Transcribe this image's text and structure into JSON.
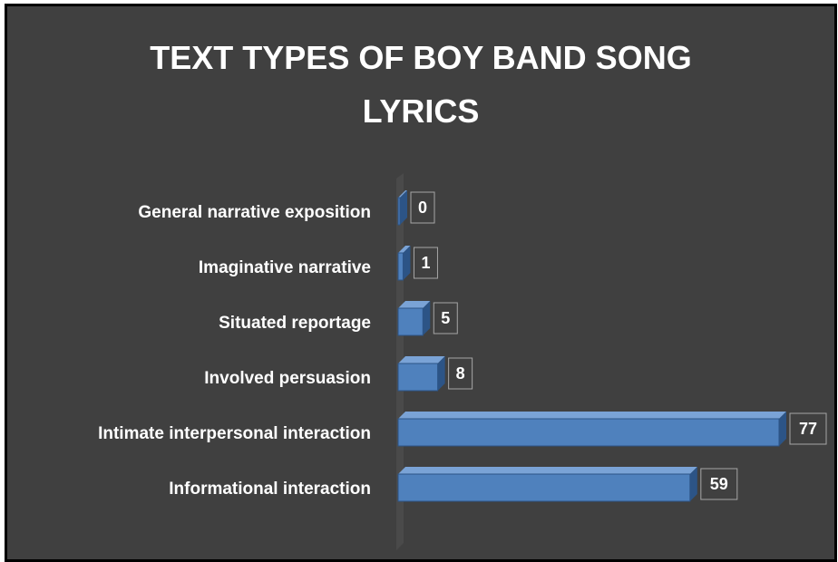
{
  "chart_data": {
    "type": "bar",
    "orientation": "horizontal",
    "title": "TEXT TYPES OF BOY BAND SONG LYRICS",
    "title_lines": [
      "TEXT TYPES OF BOY BAND SONG",
      "LYRICS"
    ],
    "categories": [
      "General narrative exposition",
      "Imaginative narrative",
      "Situated reportage",
      "Involved persuasion",
      "Intimate interpersonal interaction",
      "Informational interaction"
    ],
    "values": [
      0,
      1,
      5,
      8,
      77,
      59
    ],
    "data_labels": [
      "0",
      "1",
      "5",
      "8",
      "77",
      "59"
    ],
    "xlim": [
      0,
      77
    ],
    "grid": false,
    "legend": "none",
    "style": "3d",
    "colors": {
      "background": "#404040",
      "bar": "#4f81bd",
      "bar_top": "#7aa3d6",
      "bar_side": "#2c5486",
      "text": "#ffffff",
      "label_box": "#404040",
      "label_border": "#a6a6a6"
    }
  }
}
